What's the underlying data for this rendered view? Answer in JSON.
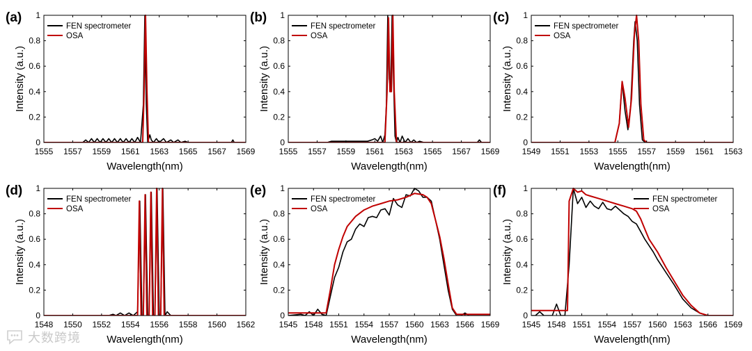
{
  "chart_data": [
    {
      "panel_label": "(a)",
      "type": "line",
      "xlabel": "Wavelength(nm)",
      "ylabel": "Intensity (a.u.)",
      "xlim": [
        1555,
        1569
      ],
      "ylim": [
        0,
        1
      ],
      "xticks": [
        "1555",
        "1557",
        "1559",
        "1561",
        "1563",
        "1565",
        "1567",
        "1569"
      ],
      "yticks": [
        "0",
        "0.2",
        "0.4",
        "0.6",
        "0.8",
        "1"
      ],
      "legend_position": "top-left",
      "series": [
        {
          "name": "FEN spectrometer",
          "color": "#000000",
          "x": [
            1555,
            1557.7,
            1557.9,
            1558.1,
            1558.3,
            1558.5,
            1558.7,
            1558.9,
            1559.1,
            1559.3,
            1559.5,
            1559.7,
            1559.9,
            1560.1,
            1560.3,
            1560.5,
            1560.7,
            1560.9,
            1561.1,
            1561.3,
            1561.5,
            1561.7,
            1561.9,
            1562.0,
            1562.1,
            1562.2,
            1562.35,
            1562.45,
            1562.6,
            1562.8,
            1563.0,
            1563.3,
            1563.5,
            1563.8,
            1564.0,
            1564.3,
            1564.5,
            1564.8,
            1565.0,
            1565.5,
            1568.0,
            1568.1,
            1568.2,
            1569
          ],
          "y": [
            0,
            0,
            0.02,
            0,
            0.03,
            0,
            0.03,
            0,
            0.03,
            0,
            0.03,
            0,
            0.03,
            0,
            0.03,
            0,
            0.03,
            0,
            0.03,
            0,
            0.04,
            0,
            0.3,
            1.0,
            0.3,
            0,
            0.06,
            0.02,
            0,
            0.03,
            0,
            0.03,
            0,
            0.02,
            0,
            0.02,
            0,
            0.01,
            0,
            0,
            0,
            0.02,
            0,
            0
          ]
        },
        {
          "name": "OSA",
          "color": "#c00000",
          "x": [
            1555,
            1561.85,
            1561.95,
            1562.05,
            1562.15,
            1562.25,
            1569
          ],
          "y": [
            0,
            0,
            0.4,
            1.0,
            0.4,
            0,
            0
          ]
        }
      ]
    },
    {
      "panel_label": "(b)",
      "type": "line",
      "xlabel": "Wavelength(nm)",
      "ylabel": "Intensity (a.u.)",
      "xlim": [
        1555,
        1569
      ],
      "ylim": [
        0,
        1
      ],
      "xticks": [
        "1555",
        "1557",
        "1559",
        "1561",
        "1563",
        "1565",
        "1567",
        "1569"
      ],
      "yticks": [
        "0",
        "0.2",
        "0.4",
        "0.6",
        "0.8",
        "1"
      ],
      "legend_position": "top-left",
      "series": [
        {
          "name": "FEN spectrometer",
          "color": "#000000",
          "x": [
            1555,
            1557.7,
            1558.0,
            1558.5,
            1559.0,
            1559.5,
            1560.0,
            1560.5,
            1560.8,
            1561.0,
            1561.2,
            1561.4,
            1561.55,
            1561.7,
            1561.8,
            1561.9,
            1562.0,
            1562.1,
            1562.2,
            1562.3,
            1562.4,
            1562.5,
            1562.6,
            1562.75,
            1562.9,
            1563.1,
            1563.3,
            1563.5,
            1563.7,
            1563.9,
            1564.1,
            1564.4,
            1565.0,
            1568.1,
            1568.25,
            1568.4,
            1569
          ],
          "y": [
            0,
            0,
            0.01,
            0.01,
            0.01,
            0.01,
            0.01,
            0.01,
            0.02,
            0.03,
            0.01,
            0.05,
            0,
            0.06,
            0.3,
            1.0,
            0.5,
            0.4,
            1.0,
            0.5,
            0.05,
            0,
            0.04,
            0,
            0.05,
            0,
            0.03,
            0,
            0.02,
            0,
            0.01,
            0,
            0,
            0,
            0.02,
            0,
            0
          ]
        },
        {
          "name": "OSA",
          "color": "#c00000",
          "x": [
            1555,
            1561.7,
            1561.85,
            1561.95,
            1562.05,
            1562.15,
            1562.25,
            1562.35,
            1562.5,
            1569
          ],
          "y": [
            0,
            0,
            0.4,
            0.98,
            0.4,
            0.4,
            1.0,
            0.4,
            0,
            0
          ]
        }
      ]
    },
    {
      "panel_label": "(c)",
      "type": "line",
      "xlabel": "Wavelength(nm)",
      "ylabel": "Intensity (a.u.)",
      "xlim": [
        1549,
        1563
      ],
      "ylim": [
        0,
        1
      ],
      "xticks": [
        "1549",
        "1551",
        "1553",
        "1555",
        "1557",
        "1559",
        "1561",
        "1563"
      ],
      "yticks": [
        "0",
        "0.2",
        "0.4",
        "0.6",
        "0.8",
        "1"
      ],
      "legend_position": "top-left",
      "series": [
        {
          "name": "FEN spectrometer",
          "color": "#000000",
          "x": [
            1549,
            1554.8,
            1555.1,
            1555.3,
            1555.5,
            1555.7,
            1555.9,
            1556.1,
            1556.2,
            1556.35,
            1556.5,
            1556.7,
            1556.9,
            1563
          ],
          "y": [
            0,
            0,
            0.15,
            0.48,
            0.25,
            0.1,
            0.3,
            0.8,
            0.95,
            0.8,
            0.3,
            0.02,
            0,
            0
          ]
        },
        {
          "name": "OSA",
          "color": "#c00000",
          "x": [
            1549,
            1554.8,
            1555.1,
            1555.3,
            1555.5,
            1555.75,
            1555.95,
            1556.15,
            1556.3,
            1556.45,
            1556.6,
            1556.8,
            1557.0,
            1563
          ],
          "y": [
            0,
            0,
            0.15,
            0.48,
            0.35,
            0.12,
            0.35,
            0.85,
            1.0,
            0.8,
            0.3,
            0.02,
            0,
            0
          ]
        }
      ]
    },
    {
      "panel_label": "(d)",
      "type": "line",
      "xlabel": "Wavelength(nm)",
      "ylabel": "Intensity (a.u.)",
      "xlim": [
        1548,
        1562
      ],
      "ylim": [
        0,
        1
      ],
      "xticks": [
        "1548",
        "1550",
        "1552",
        "1554",
        "1556",
        "1558",
        "1560",
        "1562"
      ],
      "yticks": [
        "0",
        "0.2",
        "0.4",
        "0.6",
        "0.8",
        "1"
      ],
      "legend_position": "top-left",
      "series": [
        {
          "name": "FEN spectrometer",
          "color": "#000000",
          "x": [
            1548,
            1552.5,
            1552.8,
            1553.0,
            1553.3,
            1553.6,
            1553.9,
            1554.2,
            1554.5,
            1554.65,
            1554.8,
            1554.9,
            1555.05,
            1555.2,
            1555.3,
            1555.45,
            1555.6,
            1555.7,
            1555.85,
            1556.0,
            1556.1,
            1556.25,
            1556.4,
            1556.55,
            1556.8,
            1557.2,
            1562
          ],
          "y": [
            0,
            0,
            0.01,
            0,
            0.02,
            0,
            0.02,
            0,
            0.03,
            0.9,
            0,
            0,
            0.95,
            0,
            0,
            0.97,
            0,
            0,
            1.0,
            0,
            0,
            1.0,
            0,
            0.03,
            0,
            0,
            0
          ]
        },
        {
          "name": "OSA",
          "color": "#c00000",
          "x": [
            1548,
            1554.5,
            1554.62,
            1554.74,
            1554.9,
            1555.02,
            1555.14,
            1555.3,
            1555.42,
            1555.54,
            1555.7,
            1555.82,
            1555.94,
            1556.1,
            1556.22,
            1556.34,
            1556.5,
            1562
          ],
          "y": [
            0,
            0,
            0.9,
            0,
            0,
            0.95,
            0,
            0,
            0.97,
            0,
            0,
            1.0,
            0,
            0,
            1.0,
            0,
            0,
            0
          ]
        }
      ]
    },
    {
      "panel_label": "(e)",
      "type": "line",
      "xlabel": "Wavelength(nm)",
      "ylabel": "Intensity (a.u.)",
      "xlim": [
        1545,
        1569
      ],
      "ylim": [
        0,
        1
      ],
      "xticks": [
        "1545",
        "1548",
        "1551",
        "1554",
        "1557",
        "1560",
        "1563",
        "1566",
        "1569"
      ],
      "yticks": [
        "0",
        "0.2",
        "0.4",
        "0.6",
        "0.8",
        "1"
      ],
      "legend_position": "top-left",
      "series": [
        {
          "name": "FEN spectrometer",
          "color": "#000000",
          "x": [
            1545,
            1546.5,
            1547.0,
            1547.5,
            1548.0,
            1548.5,
            1549.0,
            1549.5,
            1550.0,
            1550.5,
            1551.0,
            1551.5,
            1552.0,
            1552.5,
            1553.0,
            1553.5,
            1554.0,
            1554.5,
            1555.0,
            1555.5,
            1556.0,
            1556.5,
            1557.0,
            1557.5,
            1558.0,
            1558.5,
            1559.0,
            1559.5,
            1560.0,
            1560.5,
            1561.0,
            1561.5,
            1562.0,
            1562.5,
            1563.0,
            1563.5,
            1564.0,
            1564.5,
            1565.0,
            1565.5,
            1566.0,
            1566.5,
            1569
          ],
          "y": [
            0,
            0.01,
            0,
            0.03,
            0,
            0.05,
            0.01,
            0,
            0.15,
            0.3,
            0.38,
            0.5,
            0.58,
            0.6,
            0.68,
            0.72,
            0.7,
            0.77,
            0.78,
            0.77,
            0.83,
            0.84,
            0.79,
            0.92,
            0.87,
            0.85,
            0.95,
            0.94,
            1.0,
            0.98,
            0.93,
            0.93,
            0.9,
            0.75,
            0.6,
            0.4,
            0.2,
            0.05,
            0,
            0,
            0.02,
            0,
            0
          ]
        },
        {
          "name": "OSA",
          "color": "#c00000",
          "x": [
            1545,
            1549.5,
            1550.0,
            1550.5,
            1551.0,
            1551.5,
            1552.0,
            1553.0,
            1554.0,
            1555.0,
            1556.0,
            1557.0,
            1558.0,
            1559.0,
            1560.0,
            1561.0,
            1561.5,
            1562.0,
            1562.5,
            1563.0,
            1563.5,
            1564.0,
            1564.5,
            1565.0,
            1569
          ],
          "y": [
            0.02,
            0.02,
            0.2,
            0.4,
            0.52,
            0.62,
            0.7,
            0.78,
            0.83,
            0.86,
            0.88,
            0.9,
            0.91,
            0.93,
            0.96,
            0.95,
            0.93,
            0.88,
            0.75,
            0.62,
            0.45,
            0.25,
            0.06,
            0.01,
            0.01
          ]
        }
      ]
    },
    {
      "panel_label": "(f)",
      "type": "line",
      "xlabel": "Wavelength(nm)",
      "ylabel": "Intensity (a.u.)",
      "xlim": [
        1545,
        1569
      ],
      "ylim": [
        0,
        1
      ],
      "xticks": [
        "1545",
        "1548",
        "1551",
        "1554",
        "1557",
        "1560",
        "1563",
        "1566",
        "1569"
      ],
      "yticks": [
        "0",
        "0.2",
        "0.4",
        "0.6",
        "0.8",
        "1"
      ],
      "legend_position": "top-right",
      "series": [
        {
          "name": "FEN spectrometer",
          "color": "#000000",
          "x": [
            1545,
            1545.5,
            1546.0,
            1546.5,
            1547.5,
            1548.0,
            1548.5,
            1549.0,
            1549.5,
            1550.0,
            1550.5,
            1551.0,
            1551.5,
            1552.0,
            1552.5,
            1553.0,
            1553.5,
            1554.0,
            1554.5,
            1555.0,
            1555.5,
            1556.0,
            1556.5,
            1557.0,
            1557.5,
            1558.0,
            1558.5,
            1559.0,
            1559.5,
            1560.0,
            1561.0,
            1562.0,
            1563.0,
            1564.0,
            1565.0,
            1566.0,
            1569
          ],
          "y": [
            0,
            0,
            0.03,
            0,
            0,
            0.09,
            0,
            0,
            0.4,
            1.0,
            0.88,
            0.93,
            0.85,
            0.9,
            0.86,
            0.84,
            0.89,
            0.84,
            0.83,
            0.86,
            0.83,
            0.8,
            0.78,
            0.74,
            0.72,
            0.66,
            0.6,
            0.55,
            0.5,
            0.44,
            0.34,
            0.24,
            0.13,
            0.06,
            0.02,
            0,
            0
          ]
        },
        {
          "name": "OSA",
          "color": "#c00000",
          "x": [
            1545,
            1549.3,
            1549.5,
            1550.0,
            1550.5,
            1551.0,
            1551.5,
            1552.0,
            1553.0,
            1554.0,
            1555.0,
            1556.0,
            1557.0,
            1557.5,
            1558.0,
            1558.5,
            1559.0,
            1560.0,
            1561.0,
            1562.0,
            1563.0,
            1564.0,
            1565.0,
            1566.0,
            1569
          ],
          "y": [
            0.04,
            0.04,
            0.9,
            1.0,
            0.97,
            0.98,
            0.95,
            0.94,
            0.92,
            0.9,
            0.88,
            0.86,
            0.84,
            0.82,
            0.76,
            0.68,
            0.6,
            0.5,
            0.38,
            0.27,
            0.16,
            0.08,
            0.02,
            0,
            0
          ]
        }
      ]
    }
  ],
  "watermark": {
    "text": "大数跨境",
    "logo_icon": "speech-bubble-logo-icon",
    "color": "#c9c9c9"
  }
}
